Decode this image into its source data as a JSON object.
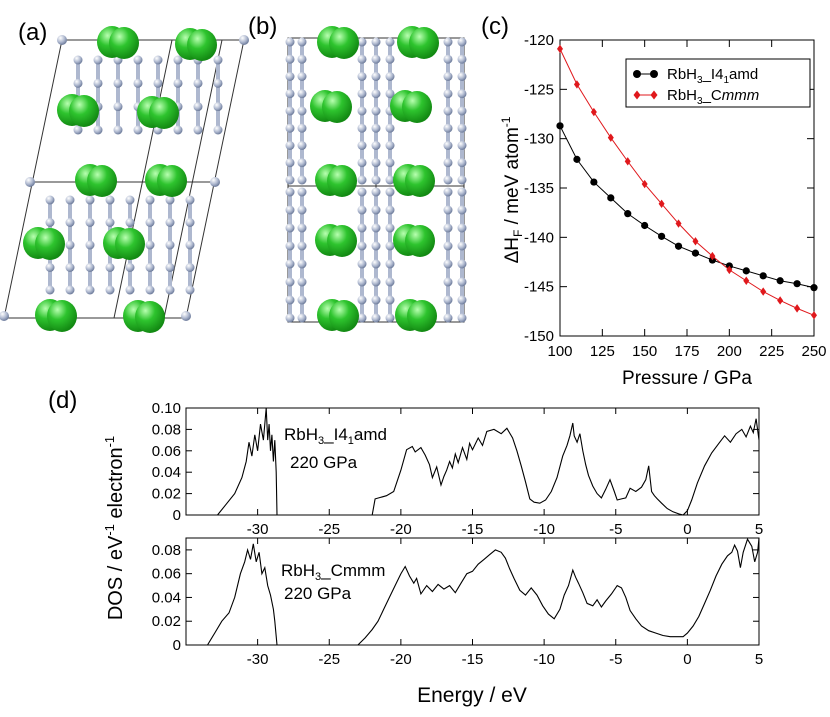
{
  "panels": {
    "a": "(a)",
    "b": "(b)",
    "c": "(c)",
    "d": "(d)"
  },
  "colors": {
    "atom_rb": "#2ec42e",
    "atom_h": "#aeb8cf",
    "series_i41amd": "#000000",
    "series_cmmm": "#e0181c"
  },
  "chart_data": [
    {
      "id": "c",
      "type": "line",
      "title": "",
      "xlabel": "Pressure / GPa",
      "ylabel_parts": {
        "delta": "ΔH",
        "sub": "F",
        "mid": " / meV atom",
        "sup": "-1"
      },
      "xlim": [
        100,
        250
      ],
      "ylim": [
        -150,
        -120
      ],
      "xticks": [
        "100",
        "125",
        "150",
        "175",
        "200",
        "225",
        "250"
      ],
      "yticks": [
        "-150",
        "-145",
        "-140",
        "-135",
        "-130",
        "-125",
        "-120"
      ],
      "x": [
        100,
        110,
        120,
        130,
        140,
        150,
        160,
        170,
        180,
        190,
        200,
        210,
        220,
        230,
        240,
        250
      ],
      "legend_position": "top-right",
      "series": [
        {
          "name": "RbH3_I41amd",
          "legend": {
            "pre": "RbH",
            "sub1": "3",
            "mid": "_I4",
            "sub2": "1",
            "post": "amd"
          },
          "marker": "circle",
          "values": [
            -128.7,
            -132.1,
            -134.4,
            -136.0,
            -137.6,
            -138.8,
            -139.9,
            -140.9,
            -141.6,
            -142.3,
            -142.9,
            -143.4,
            -143.9,
            -144.4,
            -144.7,
            -145.1
          ]
        },
        {
          "name": "RbH3_Cmmm",
          "legend": {
            "pre": "RbH",
            "sub1": "3",
            "mid": "_C",
            "post": "mmm"
          },
          "marker": "diamond",
          "values": [
            -120.9,
            -124.5,
            -127.3,
            -129.9,
            -132.3,
            -134.6,
            -136.6,
            -138.6,
            -140.4,
            -141.9,
            -143.3,
            -144.4,
            -145.5,
            -146.4,
            -147.2,
            -147.9
          ]
        }
      ]
    },
    {
      "id": "d-top",
      "type": "line",
      "label": {
        "pre": "RbH",
        "sub1": "3",
        "mid": "_I4",
        "sub2": "1",
        "post": "amd",
        "pressure": "220 GPa"
      },
      "xlim": [
        -35,
        5
      ],
      "ylim": [
        0,
        0.1
      ],
      "xticks": [
        "-30",
        "-25",
        "-20",
        "-15",
        "-10",
        "-5",
        "0",
        "5"
      ],
      "yticks": [
        "0",
        "0.02",
        "0.04",
        "0.06",
        "0.08",
        "0.10"
      ],
      "segments": [
        {
          "x": [
            -32.8,
            -32.2,
            -31.6,
            -31.1,
            -30.8,
            -30.6,
            -30.4,
            -30.2,
            -30.0,
            -29.8,
            -29.6,
            -29.4,
            -29.3,
            -29.2,
            -29.1,
            -29.0,
            -28.9,
            -28.8,
            -28.7,
            -28.65
          ],
          "y": [
            0.0,
            0.01,
            0.02,
            0.035,
            0.05,
            0.068,
            0.055,
            0.075,
            0.06,
            0.085,
            0.07,
            0.1,
            0.07,
            0.085,
            0.06,
            0.075,
            0.05,
            0.07,
            0.04,
            0.0
          ]
        },
        {
          "x": [
            -22.0,
            -21.8,
            -21.0,
            -20.5,
            -20.0,
            -19.6,
            -19.2,
            -19.0,
            -18.6,
            -18.3,
            -18.0,
            -17.8,
            -17.5,
            -17.2,
            -17.0,
            -16.8,
            -16.6,
            -16.4,
            -16.2,
            -16.0,
            -15.7,
            -15.4,
            -15.2,
            -15.0,
            -14.6,
            -14.3,
            -14.0,
            -13.5,
            -13.0,
            -12.6,
            -12.2,
            -11.9,
            -11.6,
            -11.3,
            -11.0,
            -10.7,
            -10.3,
            -9.9,
            -9.5,
            -9.1,
            -8.7,
            -8.4,
            -8.2,
            -8.0,
            -7.9,
            -7.7,
            -7.5,
            -7.3,
            -7.1,
            -6.9,
            -6.6,
            -6.3,
            -6.0,
            -5.7,
            -5.4,
            -5.1,
            -4.9,
            -4.6,
            -4.3,
            -4.0,
            -3.6,
            -3.2,
            -2.9,
            -2.7,
            -2.5,
            -2.3,
            -2.1,
            -1.8,
            -1.4,
            -1.0,
            -0.6,
            -0.3,
            0.0,
            0.3,
            0.7,
            1.2,
            1.7,
            2.2,
            2.6,
            3.0,
            3.4,
            3.8,
            4.1,
            4.4,
            4.6,
            4.8,
            5.0
          ],
          "y": [
            0.0,
            0.015,
            0.018,
            0.022,
            0.042,
            0.061,
            0.064,
            0.059,
            0.063,
            0.056,
            0.047,
            0.035,
            0.045,
            0.028,
            0.036,
            0.042,
            0.05,
            0.044,
            0.057,
            0.049,
            0.063,
            0.052,
            0.067,
            0.061,
            0.072,
            0.065,
            0.078,
            0.08,
            0.076,
            0.081,
            0.072,
            0.06,
            0.046,
            0.031,
            0.015,
            0.012,
            0.011,
            0.014,
            0.022,
            0.035,
            0.055,
            0.065,
            0.074,
            0.086,
            0.074,
            0.068,
            0.076,
            0.06,
            0.047,
            0.037,
            0.027,
            0.02,
            0.016,
            0.024,
            0.033,
            0.022,
            0.014,
            0.015,
            0.016,
            0.025,
            0.022,
            0.026,
            0.033,
            0.046,
            0.022,
            0.018,
            0.015,
            0.011,
            0.006,
            0.003,
            0.001,
            0.0,
            0.004,
            0.014,
            0.03,
            0.046,
            0.058,
            0.067,
            0.074,
            0.068,
            0.076,
            0.08,
            0.073,
            0.083,
            0.077,
            0.09,
            0.07
          ]
        }
      ]
    },
    {
      "id": "d-bottom",
      "type": "line",
      "label": {
        "pre": "RbH",
        "sub1": "3",
        "post": "_Cmmm",
        "pressure": "220 GPa"
      },
      "xlabel": "Energy / eV",
      "ylabel_parts": {
        "pre": "DOS / eV",
        "sup1": "-1",
        "post": " electron",
        "sup2": "-1"
      },
      "xlim": [
        -35,
        5
      ],
      "ylim": [
        0,
        0.09
      ],
      "xticks": [
        "-30",
        "-25",
        "-20",
        "-15",
        "-10",
        "-5",
        "0",
        "5"
      ],
      "yticks": [
        "0",
        "0.02",
        "0.04",
        "0.06",
        "0.08"
      ],
      "segments": [
        {
          "x": [
            -33.5,
            -33.0,
            -32.5,
            -32.0,
            -31.6,
            -31.2,
            -30.9,
            -30.7,
            -30.5,
            -30.3,
            -30.1,
            -29.9,
            -29.7,
            -29.5,
            -29.3,
            -29.1,
            -28.9,
            -28.8,
            -28.65
          ],
          "y": [
            0.0,
            0.01,
            0.02,
            0.027,
            0.04,
            0.06,
            0.07,
            0.08,
            0.072,
            0.085,
            0.07,
            0.078,
            0.06,
            0.065,
            0.05,
            0.042,
            0.03,
            0.02,
            0.0
          ]
        },
        {
          "x": [
            -23.0,
            -22.5,
            -22.0,
            -21.6,
            -21.2,
            -20.8,
            -20.4,
            -20.0,
            -19.7,
            -19.4,
            -19.1,
            -18.9,
            -18.6,
            -18.2,
            -17.8,
            -17.4,
            -17.0,
            -16.6,
            -16.2,
            -15.8,
            -15.4,
            -15.0,
            -14.6,
            -14.2,
            -13.8,
            -13.4,
            -13.0,
            -12.7,
            -12.4,
            -12.1,
            -11.7,
            -11.3,
            -10.9,
            -10.5,
            -10.1,
            -9.7,
            -9.3,
            -8.9,
            -8.6,
            -8.3,
            -8.0,
            -7.8,
            -7.6,
            -7.3,
            -7.0,
            -6.6,
            -6.3,
            -6.0,
            -5.7,
            -5.3,
            -4.9,
            -4.6,
            -4.3,
            -4.0,
            -3.6,
            -3.2,
            -2.7,
            -2.2,
            -1.7,
            -1.2,
            -0.7,
            -0.3,
            0.0,
            0.4,
            0.8,
            1.2,
            1.6,
            2.0,
            2.4,
            2.8,
            3.1,
            3.3,
            3.5,
            3.7,
            3.9,
            4.2,
            4.5,
            4.7,
            4.9,
            5.0
          ],
          "y": [
            0.0,
            0.006,
            0.013,
            0.02,
            0.03,
            0.04,
            0.05,
            0.06,
            0.066,
            0.058,
            0.052,
            0.056,
            0.043,
            0.05,
            0.045,
            0.051,
            0.047,
            0.05,
            0.044,
            0.052,
            0.06,
            0.062,
            0.068,
            0.072,
            0.076,
            0.08,
            0.078,
            0.073,
            0.064,
            0.056,
            0.046,
            0.042,
            0.048,
            0.042,
            0.033,
            0.026,
            0.022,
            0.03,
            0.042,
            0.05,
            0.063,
            0.057,
            0.052,
            0.044,
            0.035,
            0.033,
            0.038,
            0.032,
            0.037,
            0.043,
            0.05,
            0.048,
            0.04,
            0.029,
            0.022,
            0.016,
            0.012,
            0.01,
            0.008,
            0.007,
            0.007,
            0.007,
            0.01,
            0.016,
            0.024,
            0.035,
            0.046,
            0.058,
            0.068,
            0.075,
            0.078,
            0.084,
            0.079,
            0.065,
            0.078,
            0.089,
            0.083,
            0.07,
            0.078,
            0.09
          ]
        }
      ]
    }
  ]
}
